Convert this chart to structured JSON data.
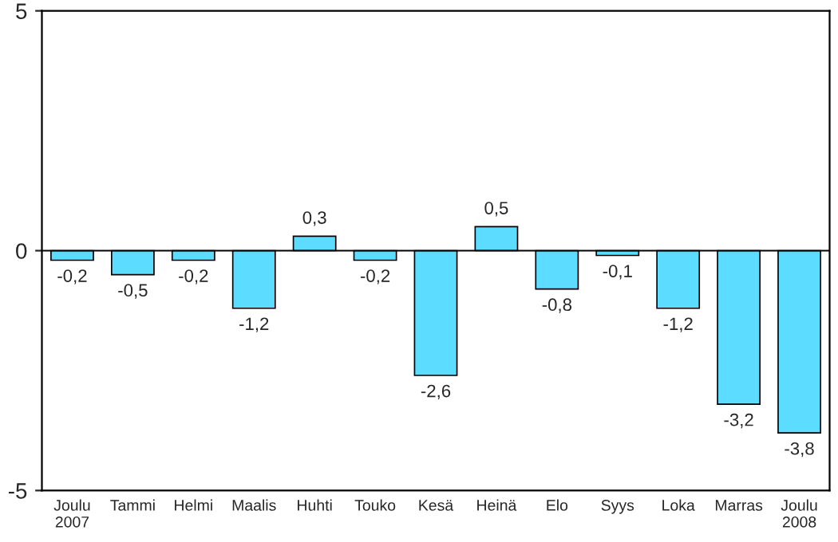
{
  "chart_data": {
    "type": "bar",
    "categories": [
      "Joulu\n2007",
      "Tammi",
      "Helmi",
      "Maalis",
      "Huhti",
      "Touko",
      "Kesä",
      "Heinä",
      "Elo",
      "Syys",
      "Loka",
      "Marras",
      "Joulu\n2008"
    ],
    "values": [
      -0.2,
      -0.5,
      -0.2,
      -1.2,
      0.3,
      -0.2,
      -2.6,
      0.5,
      -0.8,
      -0.1,
      -1.2,
      -3.2,
      -3.8
    ],
    "value_labels": [
      "-0,2",
      "-0,5",
      "-0,2",
      "-1,2",
      "0,3",
      "-0,2",
      "-2,6",
      "0,5",
      "-0,8",
      "-0,1",
      "-1,2",
      "-3,2",
      "-3,8"
    ],
    "color": "#5cdcff",
    "ylim": [
      -5,
      5
    ],
    "yticks": [
      -5,
      0,
      5
    ],
    "legend": false,
    "ref_lines": [
      {
        "axis": "y",
        "value": 0,
        "color": "#000000"
      }
    ]
  }
}
